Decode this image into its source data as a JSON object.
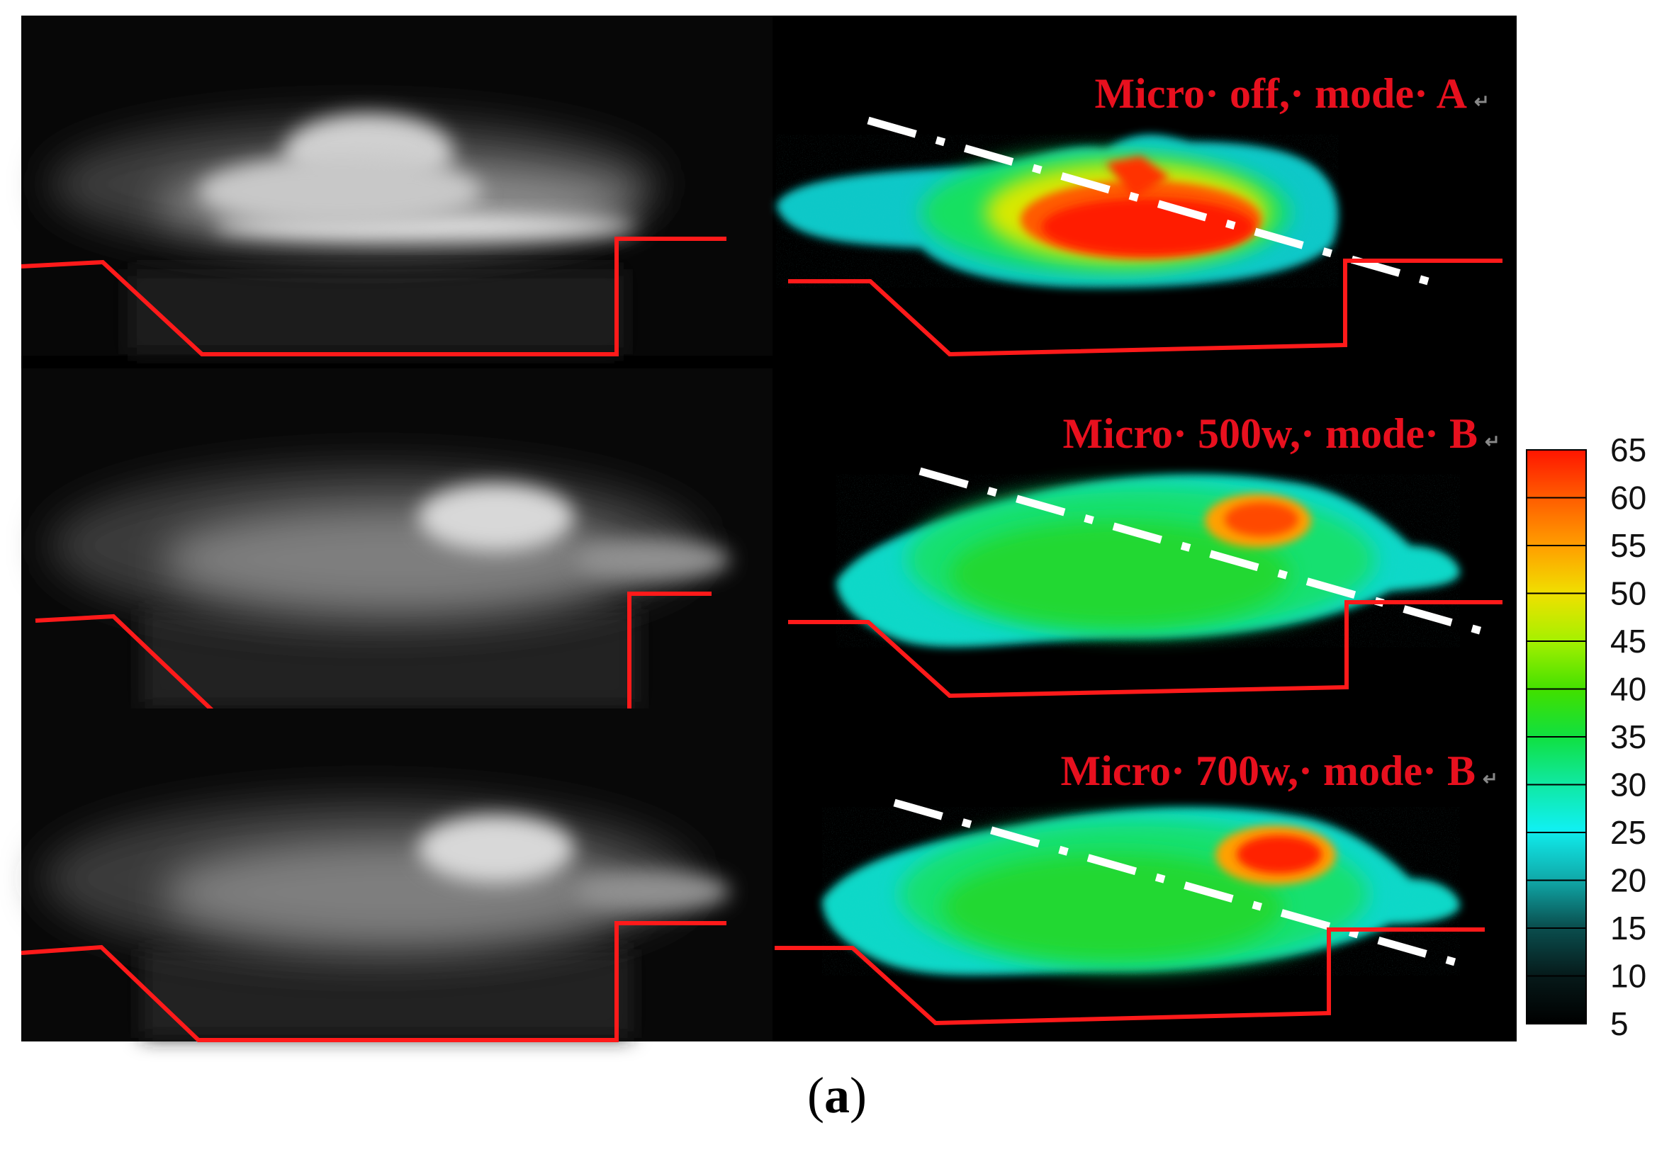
{
  "figure": {
    "caption_open": "(",
    "caption_letter": "a",
    "caption_close": ")"
  },
  "panels": [
    {
      "label": "Micro· off,· mode· A",
      "mark": "↵"
    },
    {
      "label": "Micro· 500w,· mode· B",
      "mark": "↵"
    },
    {
      "label": "Micro· 700w,· mode· B",
      "mark": "↵"
    }
  ],
  "colorbar": {
    "ticks": [
      "65",
      "60",
      "55",
      "50",
      "45",
      "40",
      "35",
      "30",
      "25",
      "20",
      "15",
      "10",
      "5"
    ],
    "min": 5,
    "max": 65
  },
  "colors": {
    "outline": "#ff1a1a",
    "label": "#e8101e",
    "background": "#000000",
    "dashline": "#ffffff"
  }
}
